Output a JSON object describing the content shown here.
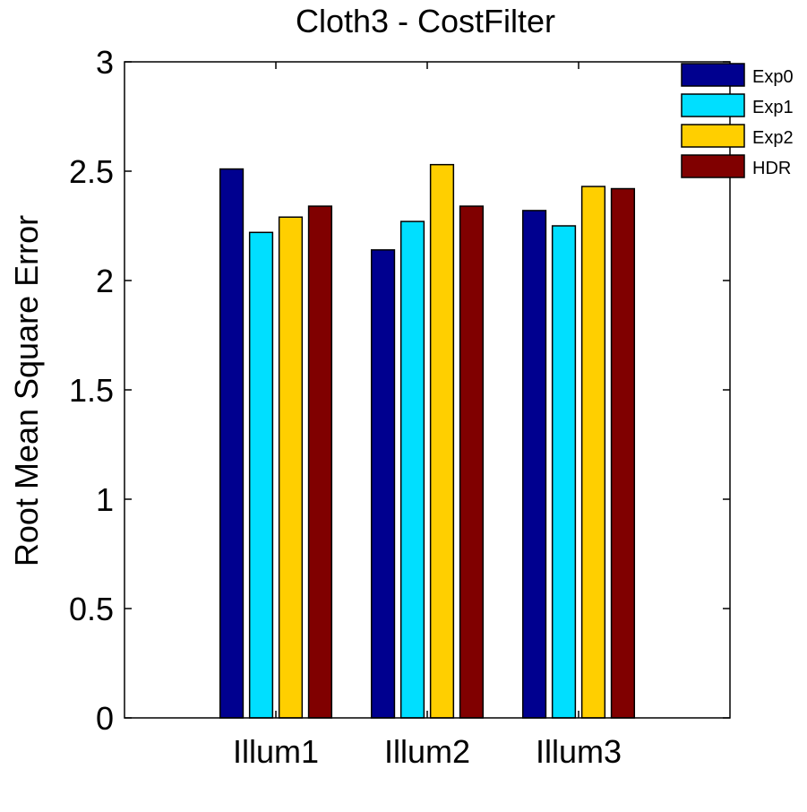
{
  "chart_data": {
    "type": "bar",
    "title": "Cloth3 - CostFilter",
    "xlabel": "",
    "ylabel": "Root Mean Square Error",
    "ylim": [
      0,
      3
    ],
    "yticks": [
      0,
      0.5,
      1,
      1.5,
      2,
      2.5,
      3
    ],
    "ytick_labels": [
      "0",
      "0.5",
      "1",
      "1.5",
      "2",
      "2.5",
      "3"
    ],
    "categories": [
      "Illum1",
      "Illum2",
      "Illum3"
    ],
    "series": [
      {
        "name": "Exp0",
        "color": "#00008F",
        "values": [
          2.51,
          2.14,
          2.32
        ]
      },
      {
        "name": "Exp1",
        "color": "#00DFFF",
        "values": [
          2.22,
          2.27,
          2.25
        ]
      },
      {
        "name": "Exp2",
        "color": "#FFCF00",
        "values": [
          2.29,
          2.53,
          2.43
        ]
      },
      {
        "name": "HDR",
        "color": "#800000",
        "values": [
          2.34,
          2.34,
          2.42
        ]
      }
    ],
    "grid": false,
    "legend_position": "top-right"
  }
}
